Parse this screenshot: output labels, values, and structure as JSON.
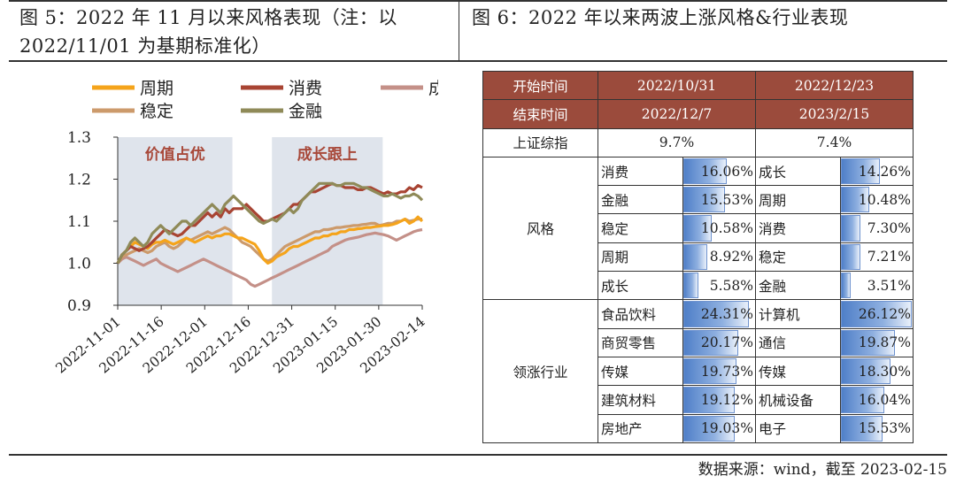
{
  "left_title": {
    "line1": "图 5：2022 年 11 月以来风格表现（注：以",
    "line2": "2022/11/01 为基期标准化）"
  },
  "right_title": "图 6：2022 年以来两波上涨风格&行业表现",
  "source": "数据来源：wind，截至 2023-02-15",
  "colors": {
    "cycle": "#f5a41b",
    "consume": "#a84433",
    "growth": "#c49088",
    "stable": "#cc9a6b",
    "finance": "#8f8a58",
    "shade": "#dfe4ec",
    "header": "#9b4b3c"
  },
  "chart_data": {
    "type": "line",
    "title": "",
    "xlabel": "",
    "ylabel": "",
    "ylim": [
      0.9,
      1.3
    ],
    "yticks": [
      "1.3",
      "1.2",
      "1.1",
      "1.0",
      "0.9"
    ],
    "x_tick_labels": [
      "2022-11-01",
      "2022-11-16",
      "2022-12-01",
      "2022-12-16",
      "2022-12-31",
      "2023-01-15",
      "2023-01-30",
      "2023-02-14"
    ],
    "x_tick_index": [
      0,
      11,
      22,
      33,
      44,
      55,
      66,
      77
    ],
    "n_points": 72,
    "shaded_regions": [
      {
        "label": "价值占优",
        "start": 0,
        "end": 29
      },
      {
        "label": "成长跟上",
        "start": 39,
        "end": 67
      }
    ],
    "series": [
      {
        "name": "周期",
        "key": "cycle",
        "values": [
          1.0,
          1.02,
          1.03,
          1.04,
          1.05,
          1.045,
          1.04,
          1.035,
          1.045,
          1.05,
          1.05,
          1.055,
          1.05,
          1.045,
          1.05,
          1.055,
          1.06,
          1.055,
          1.05,
          1.055,
          1.06,
          1.065,
          1.06,
          1.065,
          1.065,
          1.07,
          1.07,
          1.065,
          1.06,
          1.06,
          1.055,
          1.05,
          1.045,
          1.03,
          1.01,
          1.0,
          1.005,
          1.015,
          1.02,
          1.025,
          1.035,
          1.04,
          1.04,
          1.045,
          1.05,
          1.055,
          1.06,
          1.06,
          1.065,
          1.065,
          1.07,
          1.07,
          1.075,
          1.075,
          1.08,
          1.08,
          1.082,
          1.083,
          1.085,
          1.085,
          1.087,
          1.088,
          1.09,
          1.09,
          1.092,
          1.095,
          1.1,
          1.105,
          1.095,
          1.1,
          1.11,
          1.1
        ]
      },
      {
        "name": "消费",
        "key": "consume",
        "values": [
          1.0,
          1.02,
          1.03,
          1.04,
          1.035,
          1.03,
          1.035,
          1.04,
          1.05,
          1.06,
          1.07,
          1.08,
          1.075,
          1.07,
          1.065,
          1.07,
          1.08,
          1.09,
          1.09,
          1.1,
          1.11,
          1.12,
          1.11,
          1.12,
          1.11,
          1.13,
          1.12,
          1.13,
          1.13,
          1.13,
          1.14,
          1.13,
          1.12,
          1.11,
          1.1,
          1.1,
          1.105,
          1.11,
          1.115,
          1.12,
          1.13,
          1.14,
          1.14,
          1.15,
          1.16,
          1.17,
          1.17,
          1.175,
          1.18,
          1.185,
          1.19,
          1.185,
          1.185,
          1.18,
          1.18,
          1.18,
          1.175,
          1.175,
          1.18,
          1.18,
          1.175,
          1.17,
          1.165,
          1.17,
          1.165,
          1.165,
          1.17,
          1.17,
          1.18,
          1.175,
          1.185,
          1.18
        ]
      },
      {
        "name": "成长",
        "key": "growth",
        "values": [
          1.0,
          1.01,
          1.015,
          1.01,
          1.005,
          1.0,
          0.995,
          1.0,
          1.005,
          1.01,
          1.0,
          0.995,
          0.99,
          0.985,
          0.98,
          0.985,
          0.99,
          0.995,
          1.0,
          1.005,
          1.01,
          1.005,
          1.0,
          0.995,
          0.99,
          0.985,
          0.98,
          0.975,
          0.97,
          0.965,
          0.96,
          0.95,
          0.945,
          0.95,
          0.955,
          0.96,
          0.965,
          0.97,
          0.975,
          0.98,
          0.985,
          0.99,
          0.995,
          1.0,
          1.005,
          1.01,
          1.015,
          1.02,
          1.025,
          1.03,
          1.04,
          1.045,
          1.05,
          1.055,
          1.058,
          1.06,
          1.062,
          1.065,
          1.068,
          1.07,
          1.072,
          1.07,
          1.068,
          1.065,
          1.06,
          1.055,
          1.06,
          1.065,
          1.07,
          1.075,
          1.078,
          1.08
        ]
      },
      {
        "name": "稳定",
        "key": "stable",
        "values": [
          1.0,
          1.015,
          1.02,
          1.025,
          1.03,
          1.035,
          1.03,
          1.025,
          1.03,
          1.04,
          1.045,
          1.05,
          1.04,
          1.035,
          1.04,
          1.05,
          1.06,
          1.055,
          1.06,
          1.065,
          1.07,
          1.075,
          1.07,
          1.075,
          1.08,
          1.085,
          1.08,
          1.07,
          1.06,
          1.05,
          1.045,
          1.04,
          1.03,
          1.02,
          1.01,
          1.005,
          1.01,
          1.02,
          1.03,
          1.04,
          1.045,
          1.05,
          1.055,
          1.06,
          1.065,
          1.07,
          1.075,
          1.075,
          1.08,
          1.08,
          1.082,
          1.085,
          1.085,
          1.087,
          1.088,
          1.09,
          1.09,
          1.092,
          1.093,
          1.095,
          1.095,
          1.09,
          1.092,
          1.095,
          1.095,
          1.1,
          1.1,
          1.105,
          1.1,
          1.102,
          1.105,
          1.105
        ]
      },
      {
        "name": "金融",
        "key": "finance",
        "values": [
          1.0,
          1.02,
          1.03,
          1.05,
          1.06,
          1.05,
          1.04,
          1.05,
          1.07,
          1.08,
          1.09,
          1.08,
          1.07,
          1.08,
          1.09,
          1.1,
          1.1,
          1.09,
          1.1,
          1.11,
          1.12,
          1.13,
          1.14,
          1.13,
          1.12,
          1.14,
          1.15,
          1.16,
          1.15,
          1.14,
          1.13,
          1.12,
          1.11,
          1.1,
          1.095,
          1.1,
          1.105,
          1.1,
          1.11,
          1.12,
          1.13,
          1.12,
          1.13,
          1.15,
          1.16,
          1.17,
          1.18,
          1.19,
          1.19,
          1.19,
          1.19,
          1.185,
          1.185,
          1.19,
          1.19,
          1.19,
          1.185,
          1.18,
          1.18,
          1.175,
          1.17,
          1.165,
          1.16,
          1.16,
          1.165,
          1.16,
          1.155,
          1.16,
          1.16,
          1.165,
          1.16,
          1.15
        ]
      }
    ]
  },
  "table": {
    "header": [
      {
        "label": "开始时间",
        "p1": "2022/10/31",
        "p2": "2022/12/23"
      },
      {
        "label": "结束时间",
        "p1": "2022/12/7",
        "p2": "2023/2/15"
      }
    ],
    "index": {
      "label": "上证综指",
      "p1": "9.7%",
      "p2": "7.4%"
    },
    "groups": [
      {
        "label": "风格",
        "rows": [
          {
            "n1": "消费",
            "v1": "16.06%",
            "n2": "成长",
            "v2": "14.26%"
          },
          {
            "n1": "金融",
            "v1": "15.53%",
            "n2": "周期",
            "v2": "10.48%"
          },
          {
            "n1": "稳定",
            "v1": "10.58%",
            "n2": "消费",
            "v2": "7.30%"
          },
          {
            "n1": "周期",
            "v1": "8.92%",
            "n2": "稳定",
            "v2": "7.21%"
          },
          {
            "n1": "成长",
            "v1": "5.58%",
            "n2": "金融",
            "v2": "3.51%"
          }
        ]
      },
      {
        "label": "领涨行业",
        "rows": [
          {
            "n1": "食品饮料",
            "v1": "24.31%",
            "n2": "计算机",
            "v2": "26.12%"
          },
          {
            "n1": "商贸零售",
            "v1": "20.17%",
            "n2": "通信",
            "v2": "19.87%"
          },
          {
            "n1": "传媒",
            "v1": "19.73%",
            "n2": "传媒",
            "v2": "18.30%"
          },
          {
            "n1": "建筑材料",
            "v1": "19.12%",
            "n2": "机械设备",
            "v2": "16.04%"
          },
          {
            "n1": "房地产",
            "v1": "19.03%",
            "n2": "电子",
            "v2": "15.53%"
          }
        ]
      }
    ]
  }
}
